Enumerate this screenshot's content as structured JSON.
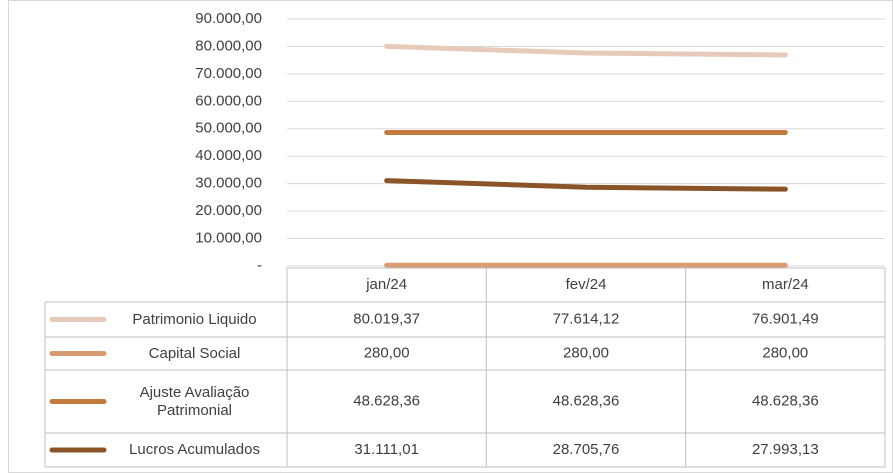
{
  "chart_data": {
    "type": "line",
    "categories": [
      "jan/24",
      "fev/24",
      "mar/24"
    ],
    "series": [
      {
        "name": "Patrimonio Liquido",
        "color": "#e6cbbb",
        "values": [
          80019.37,
          77614.12,
          76901.49
        ],
        "value_labels": [
          "80.019,37",
          "77.614,12",
          "76.901,49"
        ]
      },
      {
        "name": "Capital Social",
        "color": "#d89c72",
        "values": [
          280,
          280,
          280
        ],
        "value_labels": [
          "280,00",
          "280,00",
          "280,00"
        ]
      },
      {
        "name": "Ajuste Avaliação Patrimonial",
        "color": "#c27b3c",
        "values": [
          48628.36,
          48628.36,
          48628.36
        ],
        "value_labels": [
          "48.628,36",
          "48.628,36",
          "48.628,36"
        ]
      },
      {
        "name": "Lucros Acumulados",
        "color": "#8b5428",
        "values": [
          31111.01,
          28705.76,
          27993.13
        ],
        "value_labels": [
          "31.111,01",
          "28.705,76",
          "27.993,13"
        ]
      }
    ],
    "ylim": [
      0,
      90000
    ],
    "yticks": [
      {
        "value": 0,
        "label": "-"
      },
      {
        "value": 10000,
        "label": "10.000,00"
      },
      {
        "value": 20000,
        "label": "20.000,00"
      },
      {
        "value": 30000,
        "label": "30.000,00"
      },
      {
        "value": 40000,
        "label": "40.000,00"
      },
      {
        "value": 50000,
        "label": "50.000,00"
      },
      {
        "value": 60000,
        "label": "60.000,00"
      },
      {
        "value": 70000,
        "label": "70.000,00"
      },
      {
        "value": 80000,
        "label": "80.000,00"
      },
      {
        "value": 90000,
        "label": "90.000,00"
      }
    ],
    "grid": true
  }
}
